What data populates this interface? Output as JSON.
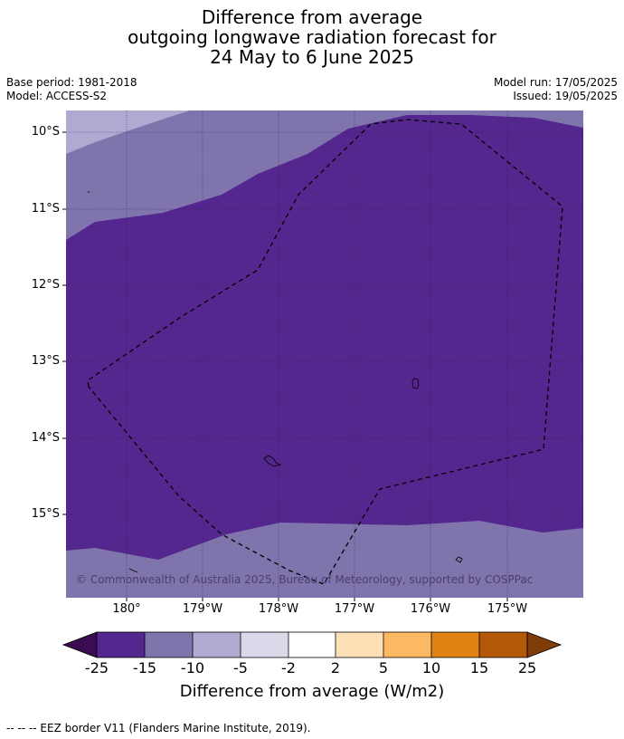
{
  "title": {
    "line1": "Difference from average",
    "line2": "outgoing longwave radiation forecast for",
    "line3": "24 May to 6 June 2025"
  },
  "meta": {
    "base_period": "Base period: 1981-2018",
    "model": "Model: ACCESS-S2",
    "model_run": "Model run: 17/05/2025",
    "issued": "Issued: 19/05/2025"
  },
  "map": {
    "lat_labels": [
      "10°S",
      "11°S",
      "12°S",
      "13°S",
      "14°S",
      "15°S"
    ],
    "lon_labels": [
      "180°",
      "179°W",
      "178°W",
      "177°W",
      "176°W",
      "175°W"
    ],
    "copyright": "© Commonwealth of Australia 2025, Bureau of Meteorology, supported by COSPPac",
    "colors": {
      "neg25": "#3b0c52",
      "neg15": "#54278f",
      "neg10": "#7f74ac",
      "neg5": "#b0a9d2",
      "neg2": "#d9d9ea",
      "zero": "#ffffff",
      "pos2": "#fee0b6",
      "pos5": "#fdb863",
      "pos10": "#e08214",
      "pos15": "#b35806",
      "pos25": "#7f3b08"
    }
  },
  "colorbar": {
    "ticks": [
      "-25",
      "-15",
      "-10",
      "-5",
      "-2",
      "2",
      "5",
      "10",
      "15",
      "25"
    ],
    "title": "Difference from average (W/m2)"
  },
  "footnote": "--  --  -- EEZ border V11 (Flanders Marine Institute, 2019)."
}
